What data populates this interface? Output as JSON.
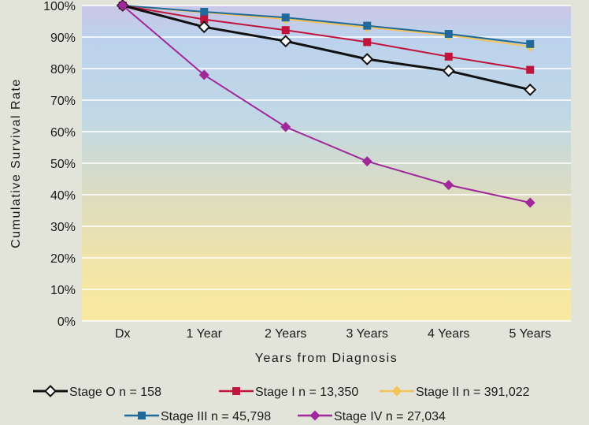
{
  "chart_data": {
    "type": "line",
    "title": "",
    "xlabel": "Years from Diagnosis",
    "ylabel": "Cumulative Survival Rate",
    "categories": [
      "Dx",
      "1 Year",
      "2 Years",
      "3 Years",
      "4 Years",
      "5 Years"
    ],
    "ylim": [
      0,
      100
    ],
    "yticks": [
      "0%",
      "10%",
      "20%",
      "30%",
      "40%",
      "50%",
      "60%",
      "70%",
      "80%",
      "90%",
      "100%"
    ],
    "grid": true,
    "legend_position": "bottom",
    "series": [
      {
        "name": "Stage O n = 158",
        "values": [
          100,
          93.2,
          88.7,
          83.0,
          79.3,
          73.3
        ],
        "color": "#111111",
        "marker": "diamond-open"
      },
      {
        "name": "Stage I n = 13,350",
        "values": [
          100,
          95.6,
          92.2,
          88.4,
          83.8,
          79.6
        ],
        "color": "#c0143c",
        "marker": "square"
      },
      {
        "name": "Stage II n = 391,022",
        "values": [
          100,
          97.8,
          95.7,
          93.1,
          90.6,
          87.0
        ],
        "color": "#f2c45a",
        "marker": "diamond"
      },
      {
        "name": "Stage III n = 45,798",
        "values": [
          100,
          98.0,
          96.2,
          93.6,
          91.0,
          87.8
        ],
        "color": "#1f6a9a",
        "marker": "square"
      },
      {
        "name": "Stage IV n = 27,034",
        "values": [
          100,
          78.0,
          61.5,
          50.6,
          43.1,
          37.5
        ],
        "color": "#a0289a",
        "marker": "diamond"
      }
    ]
  }
}
